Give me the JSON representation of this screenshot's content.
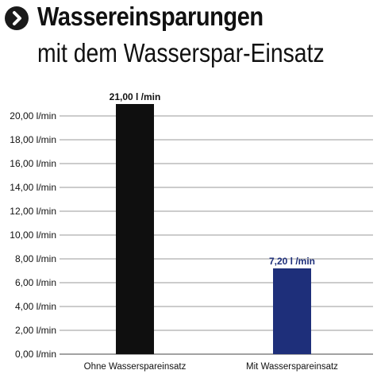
{
  "header": {
    "title": "Wassereinsparungen",
    "subtitle": "mit dem Wasserspar-Einsatz",
    "icon": "chevron-right-icon"
  },
  "colors": {
    "bar_without": "#0f0f0f",
    "bar_with": "#1e2f7a",
    "label_without": "#111111",
    "label_with": "#1e2f7a",
    "grid": "#9a9a9a"
  },
  "chart_data": {
    "type": "bar",
    "categories": [
      "Ohne Wasserspareinsatz",
      "Mit Wasserspareinsatz"
    ],
    "values": [
      21.0,
      7.2
    ],
    "data_labels": [
      "21,00 l /min",
      "7,20 l /min"
    ],
    "yticks": [
      "0,00 l/min",
      "2,00 l/min",
      "4,00 l/min",
      "6,00 l/min",
      "8,00 l/min",
      "10,00 l/min",
      "12,00 l/min",
      "14,00 l/min",
      "16,00 l/min",
      "18,00 l/min",
      "20,00 l/min"
    ],
    "ylim": [
      0,
      20
    ],
    "grid": true,
    "title": "Wassereinsparungen",
    "xlabel": "",
    "ylabel": ""
  }
}
